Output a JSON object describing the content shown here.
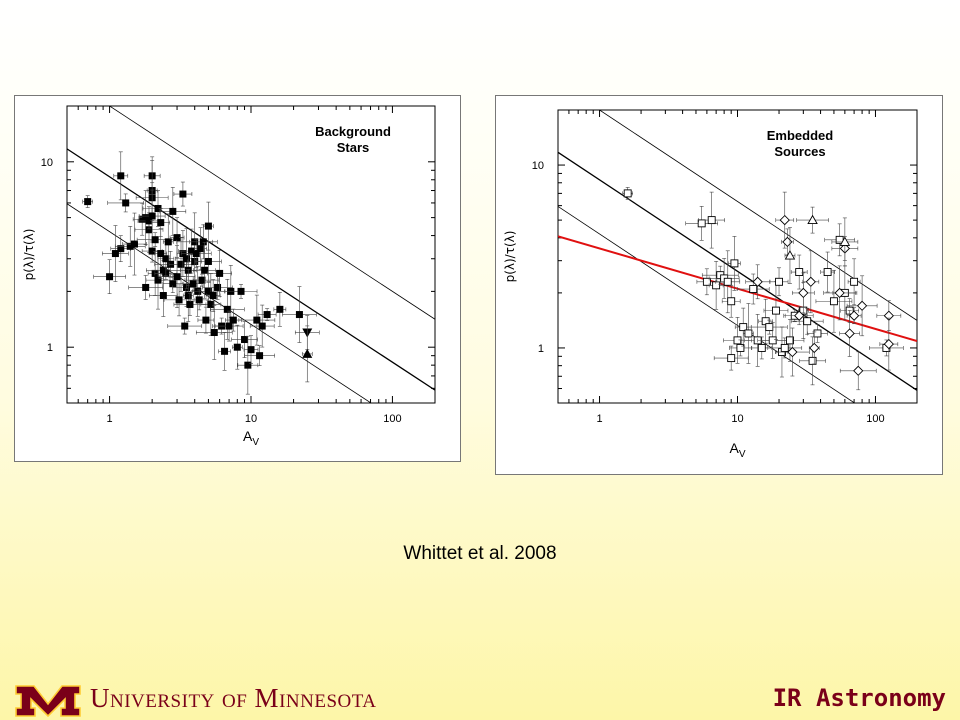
{
  "citation": "Whittet et al. 2008",
  "footer": {
    "university": "University of Minnesota",
    "course": "IR Astronomy",
    "colors": {
      "maroon": "#7a0019",
      "gold": "#ffcc33"
    }
  },
  "chart_data": [
    {
      "type": "scatter",
      "title": "Background Stars",
      "xlabel": "A_V",
      "ylabel": "p(λ)/τ(λ)",
      "xscale": "log",
      "yscale": "log",
      "xlim": [
        0.5,
        200
      ],
      "ylim": [
        0.5,
        20
      ],
      "xticks": [
        1,
        10,
        100
      ],
      "yticks": [
        1,
        10
      ],
      "lines": [
        {
          "name": "upper",
          "a": 20,
          "b": -0.5
        },
        {
          "name": "mid",
          "a": 8.3,
          "b": -0.5
        },
        {
          "name": "lower",
          "a": 4.2,
          "b": -0.5
        }
      ],
      "series": [
        {
          "marker": "filled-square",
          "points": [
            [
              0.7,
              6.1
            ],
            [
              1.0,
              2.4
            ],
            [
              1.1,
              3.2
            ],
            [
              1.2,
              3.4
            ],
            [
              1.2,
              8.4
            ],
            [
              1.3,
              6.0
            ],
            [
              1.4,
              3.5
            ],
            [
              1.5,
              3.6
            ],
            [
              1.7,
              4.9
            ],
            [
              1.8,
              5.0
            ],
            [
              1.8,
              2.1
            ],
            [
              1.9,
              4.3
            ],
            [
              1.9,
              4.8
            ],
            [
              2.0,
              8.4
            ],
            [
              2.0,
              7.0
            ],
            [
              2.0,
              6.4
            ],
            [
              2.0,
              5.1
            ],
            [
              2.0,
              3.3
            ],
            [
              2.1,
              2.5
            ],
            [
              2.1,
              3.8
            ],
            [
              2.2,
              5.6
            ],
            [
              2.2,
              2.3
            ],
            [
              2.3,
              4.7
            ],
            [
              2.3,
              3.2
            ],
            [
              2.4,
              2.6
            ],
            [
              2.4,
              1.9
            ],
            [
              2.5,
              2.5
            ],
            [
              2.5,
              3.0
            ],
            [
              2.6,
              3.7
            ],
            [
              2.7,
              2.8
            ],
            [
              2.8,
              5.4
            ],
            [
              2.8,
              2.2
            ],
            [
              3.0,
              3.9
            ],
            [
              3.0,
              2.4
            ],
            [
              3.1,
              1.8
            ],
            [
              3.2,
              2.8
            ],
            [
              3.3,
              6.7
            ],
            [
              3.3,
              3.2
            ],
            [
              3.4,
              1.3
            ],
            [
              3.5,
              2.1
            ],
            [
              3.5,
              3.0
            ],
            [
              3.6,
              2.6
            ],
            [
              3.6,
              1.9
            ],
            [
              3.7,
              1.7
            ],
            [
              3.8,
              3.3
            ],
            [
              3.9,
              2.2
            ],
            [
              4.0,
              2.9
            ],
            [
              4.0,
              3.7
            ],
            [
              4.1,
              3.2
            ],
            [
              4.2,
              2.0
            ],
            [
              4.3,
              1.8
            ],
            [
              4.4,
              3.4
            ],
            [
              4.5,
              2.3
            ],
            [
              4.6,
              3.7
            ],
            [
              4.7,
              2.6
            ],
            [
              4.8,
              1.4
            ],
            [
              5.0,
              4.5
            ],
            [
              5.0,
              2.0
            ],
            [
              5.0,
              2.9
            ],
            [
              5.2,
              1.7
            ],
            [
              5.4,
              1.9
            ],
            [
              5.5,
              1.2
            ],
            [
              5.8,
              2.1
            ],
            [
              6.0,
              2.5
            ],
            [
              6.2,
              1.3
            ],
            [
              6.5,
              0.95
            ],
            [
              6.8,
              1.6
            ],
            [
              7.0,
              1.3
            ],
            [
              7.2,
              2.0
            ],
            [
              7.5,
              1.4
            ],
            [
              8.0,
              1.0
            ],
            [
              8.5,
              2.0
            ],
            [
              9.0,
              1.1
            ],
            [
              9.5,
              0.8
            ],
            [
              10.0,
              0.97
            ],
            [
              11.0,
              1.4
            ],
            [
              11.5,
              0.9
            ],
            [
              12.0,
              1.3
            ],
            [
              13.0,
              1.5
            ],
            [
              16.0,
              1.6
            ],
            [
              22.0,
              1.5
            ]
          ]
        },
        {
          "marker": "filled-triangle-down",
          "points": [
            [
              25.0,
              1.2
            ]
          ]
        },
        {
          "marker": "filled-triangle-up",
          "points": [
            [
              25.0,
              0.92
            ]
          ]
        }
      ]
    },
    {
      "type": "scatter",
      "title": "Embedded Sources",
      "xlabel": "A_V",
      "ylabel": "p(λ)/τ(λ)",
      "xscale": "log",
      "yscale": "log",
      "xlim": [
        0.5,
        200
      ],
      "ylim": [
        0.5,
        20
      ],
      "xticks": [
        1,
        10,
        100
      ],
      "yticks": [
        1,
        10
      ],
      "lines": [
        {
          "name": "upper",
          "a": 20,
          "b": -0.5
        },
        {
          "name": "mid",
          "a": 8.3,
          "b": -0.5
        },
        {
          "name": "lower",
          "a": 4.2,
          "b": -0.5
        },
        {
          "name": "fit",
          "a": 3.5,
          "b": -0.22,
          "color": "#e01010"
        }
      ],
      "series": [
        {
          "marker": "open-square",
          "points": [
            [
              1.6,
              7.0
            ],
            [
              5.5,
              4.8
            ],
            [
              6.5,
              5.0
            ],
            [
              6.0,
              2.3
            ],
            [
              7.0,
              2.2
            ],
            [
              7.5,
              2.5
            ],
            [
              8.0,
              2.4
            ],
            [
              8.5,
              2.3
            ],
            [
              9.0,
              1.8
            ],
            [
              9.5,
              2.9
            ],
            [
              9.0,
              0.88
            ],
            [
              10.0,
              1.1
            ],
            [
              10.5,
              1.0
            ],
            [
              11.0,
              1.3
            ],
            [
              12.0,
              1.2
            ],
            [
              13.0,
              2.1
            ],
            [
              14.0,
              1.1
            ],
            [
              15.0,
              1.0
            ],
            [
              16.0,
              1.4
            ],
            [
              17.0,
              1.3
            ],
            [
              18.0,
              1.1
            ],
            [
              19.0,
              1.6
            ],
            [
              20.0,
              2.3
            ],
            [
              21.0,
              0.95
            ],
            [
              22.0,
              1.0
            ],
            [
              24.0,
              1.1
            ],
            [
              26.0,
              1.5
            ],
            [
              28.0,
              2.6
            ],
            [
              30.0,
              1.6
            ],
            [
              32.0,
              1.4
            ],
            [
              35.0,
              0.85
            ],
            [
              38.0,
              1.2
            ],
            [
              45.0,
              2.6
            ],
            [
              50.0,
              1.8
            ],
            [
              55.0,
              3.9
            ],
            [
              60.0,
              2.0
            ],
            [
              65.0,
              1.6
            ],
            [
              70.0,
              2.3
            ],
            [
              120.0,
              1.0
            ]
          ]
        },
        {
          "marker": "open-diamond",
          "points": [
            [
              14.0,
              2.3
            ],
            [
              22.0,
              5.0
            ],
            [
              23.0,
              3.8
            ],
            [
              25.0,
              0.95
            ],
            [
              28.0,
              1.5
            ],
            [
              30.0,
              2.0
            ],
            [
              34.0,
              2.3
            ],
            [
              36.0,
              1.0
            ],
            [
              55.0,
              2.0
            ],
            [
              60.0,
              3.5
            ],
            [
              65.0,
              1.2
            ],
            [
              70.0,
              1.5
            ],
            [
              75.0,
              0.75
            ],
            [
              80.0,
              1.7
            ],
            [
              125.0,
              1.5
            ],
            [
              125.0,
              1.05
            ]
          ]
        },
        {
          "marker": "open-triangle-up",
          "points": [
            [
              24.0,
              3.2
            ],
            [
              35.0,
              5.0
            ],
            [
              60.0,
              3.8
            ]
          ]
        }
      ]
    }
  ]
}
